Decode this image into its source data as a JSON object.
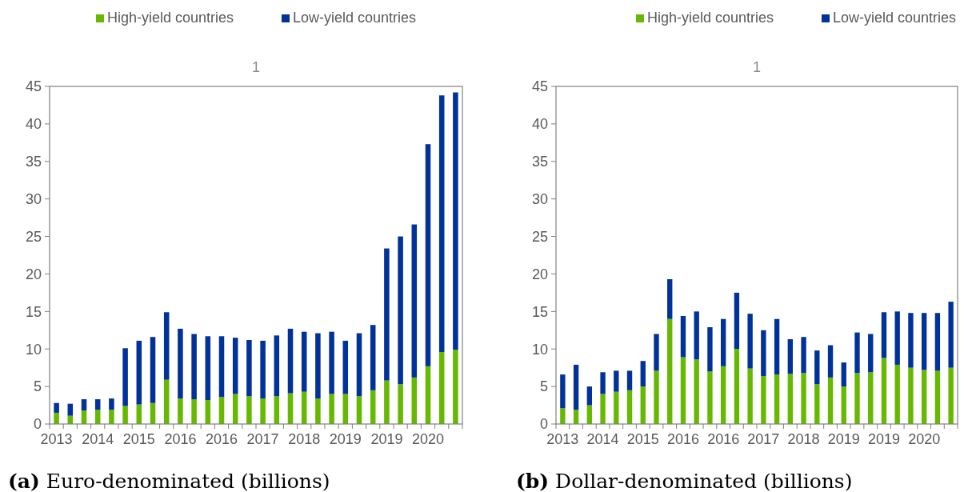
{
  "chart_data": [
    {
      "type": "bar",
      "title": "1",
      "stacked": true,
      "legend": "top",
      "annotations": [
        "(a) Euro-denominated (billions)"
      ],
      "categories": [
        "2013",
        null,
        null,
        "2014",
        null,
        null,
        "2015",
        null,
        null,
        "2016",
        null,
        null,
        "2016",
        null,
        null,
        "2017",
        null,
        null,
        "2018",
        null,
        null,
        "2019",
        null,
        null,
        "2019",
        null,
        null,
        "2020",
        null,
        null
      ],
      "ylim": [
        0,
        45
      ],
      "yticks": [
        0,
        5,
        10,
        15,
        20,
        25,
        30,
        35,
        40,
        45
      ],
      "series": [
        {
          "name": "High-yield countries",
          "color": "#66b800",
          "values": [
            1.5,
            1.1,
            1.8,
            1.9,
            1.9,
            2.4,
            2.6,
            2.8,
            5.9,
            3.4,
            3.3,
            3.2,
            3.6,
            4.0,
            3.7,
            3.4,
            3.7,
            4.1,
            4.3,
            3.4,
            4.0,
            4.0,
            3.7,
            4.5,
            5.8,
            5.3,
            6.2,
            7.7,
            9.6,
            9.9
          ]
        },
        {
          "name": "Low-yield countries",
          "color": "#003299",
          "values": [
            1.3,
            1.6,
            1.5,
            1.4,
            1.5,
            7.7,
            8.5,
            8.8,
            9.0,
            9.3,
            8.7,
            8.5,
            8.1,
            7.5,
            7.5,
            7.7,
            8.1,
            8.6,
            8.0,
            8.7,
            8.3,
            7.1,
            8.4,
            8.7,
            17.6,
            19.7,
            20.4,
            29.6,
            34.2,
            34.3
          ]
        }
      ]
    },
    {
      "type": "bar",
      "title": "1",
      "stacked": true,
      "legend": "top",
      "annotations": [
        "(b) Dollar-denominated (billions)"
      ],
      "categories": [
        "2013",
        null,
        null,
        "2014",
        null,
        null,
        "2015",
        null,
        null,
        "2016",
        null,
        null,
        "2016",
        null,
        null,
        "2017",
        null,
        null,
        "2018",
        null,
        null,
        "2019",
        null,
        null,
        "2019",
        null,
        null,
        "2020",
        null,
        null
      ],
      "ylim": [
        0,
        45
      ],
      "yticks": [
        0,
        5,
        10,
        15,
        20,
        25,
        30,
        35,
        40,
        45
      ],
      "series": [
        {
          "name": "High-yield countries",
          "color": "#66b800",
          "values": [
            2.1,
            1.9,
            2.5,
            4.0,
            4.3,
            4.5,
            5.0,
            7.1,
            14.0,
            8.9,
            8.6,
            7.0,
            7.7,
            10.0,
            7.4,
            6.4,
            6.6,
            6.7,
            6.8,
            5.3,
            6.2,
            5.0,
            6.8,
            6.9,
            8.8,
            7.9,
            7.5,
            7.2,
            7.1,
            7.5
          ]
        },
        {
          "name": "Low-yield countries",
          "color": "#003299",
          "values": [
            4.5,
            6.0,
            2.5,
            2.9,
            2.8,
            2.6,
            3.4,
            4.9,
            5.3,
            5.5,
            6.4,
            5.9,
            6.3,
            7.5,
            7.3,
            6.1,
            7.4,
            4.6,
            4.8,
            4.5,
            4.3,
            3.2,
            5.4,
            5.1,
            6.1,
            7.1,
            7.3,
            7.6,
            7.7,
            8.8
          ]
        }
      ]
    }
  ]
}
